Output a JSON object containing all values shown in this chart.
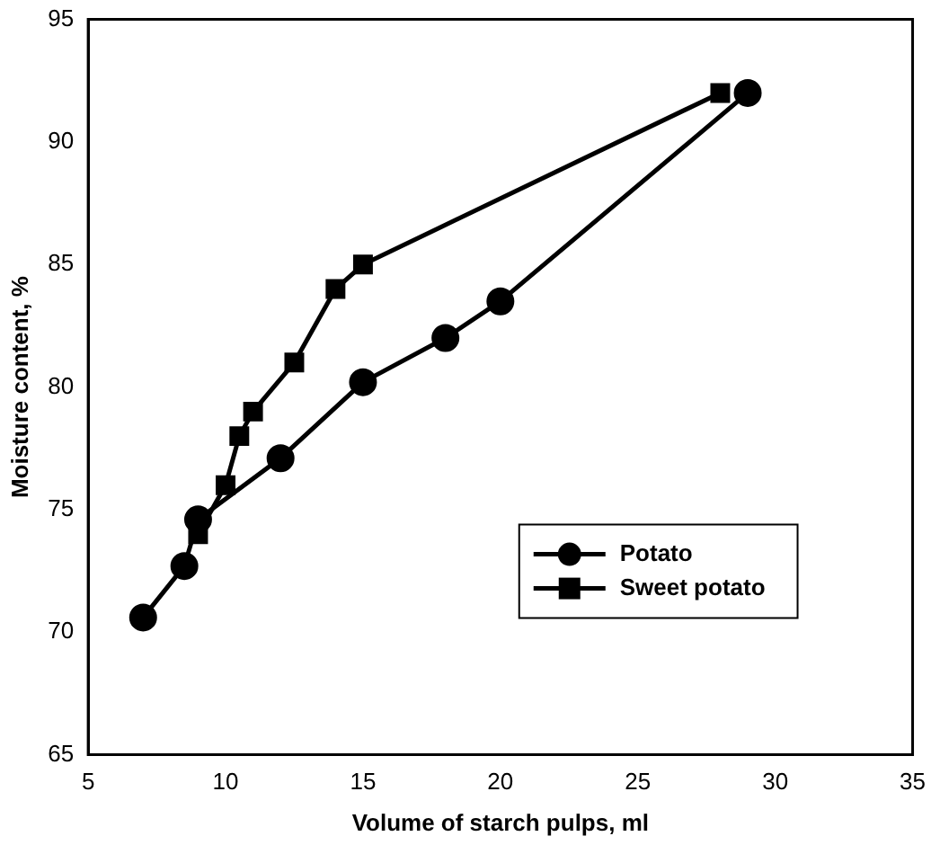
{
  "chart_data": {
    "type": "line",
    "xlabel": "Volume of starch pulps, ml",
    "ylabel": "Moisture content, %",
    "xlim": [
      5,
      35
    ],
    "xticks": [
      5,
      10,
      15,
      20,
      25,
      30,
      35
    ],
    "ylim": [
      65,
      95
    ],
    "yticks": [
      65,
      70,
      75,
      80,
      85,
      90,
      95
    ],
    "grid": false,
    "legend": "bottom right",
    "line_style": "solid",
    "series": [
      {
        "name": "Potato",
        "color": "#000000",
        "marker": "circle",
        "x": [
          7,
          8.5,
          9,
          12,
          15,
          18,
          20,
          29
        ],
        "values": [
          70.6,
          72.7,
          74.6,
          77.1,
          80.2,
          82,
          83.5,
          92
        ]
      },
      {
        "name": "Sweet potato",
        "color": "#000000",
        "marker": "square",
        "x": [
          9,
          10,
          10.5,
          11,
          12.5,
          14,
          15,
          28
        ],
        "values": [
          74,
          76,
          78,
          79,
          81,
          84,
          85,
          92
        ]
      }
    ]
  }
}
